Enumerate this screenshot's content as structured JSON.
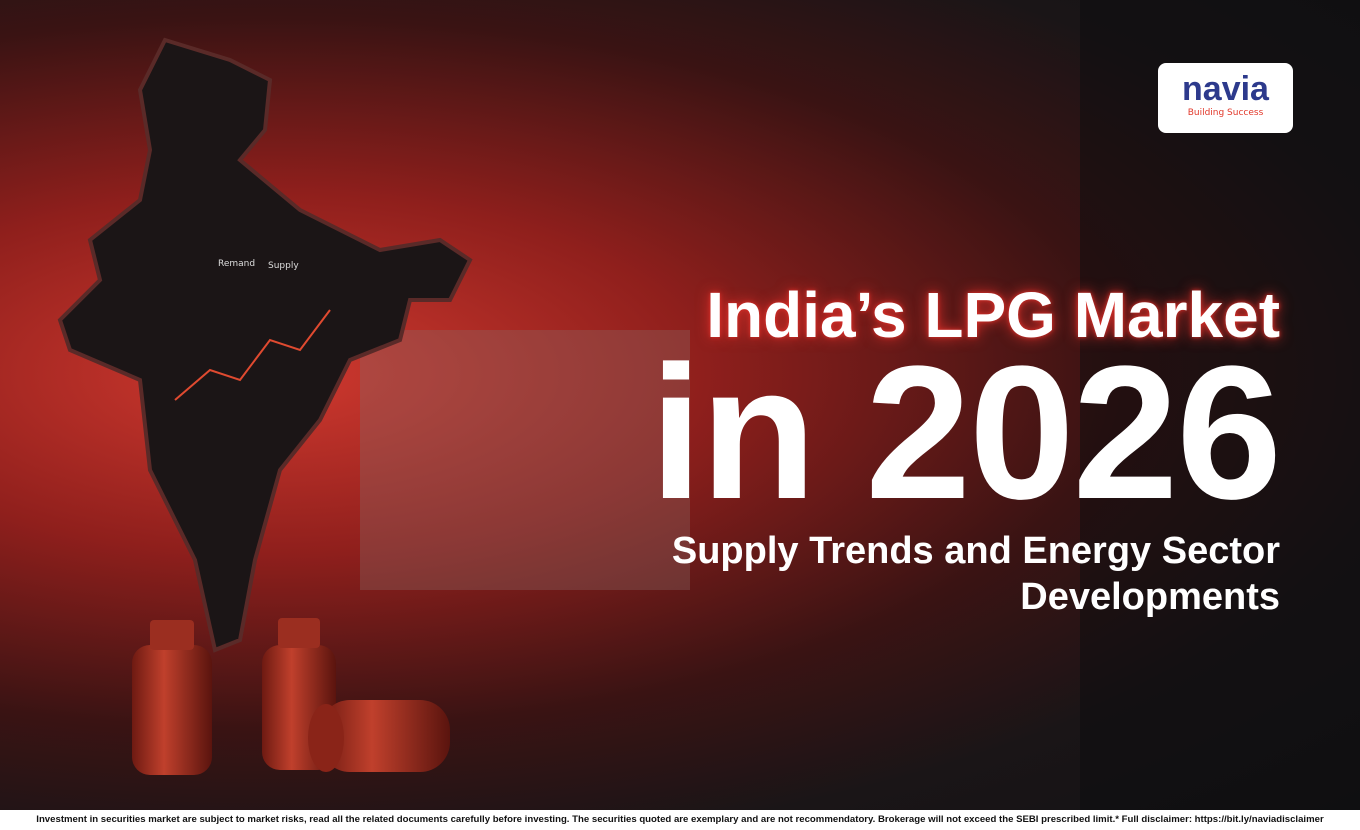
{
  "logo": {
    "name": "navia",
    "tagline": "Building Success"
  },
  "headline": {
    "line1": "India’s LPG Market",
    "line2": "in 2026",
    "subtitle1": "Supply Trends and Energy Sector",
    "subtitle2": "Developments"
  },
  "map": {
    "labels": [
      "Remand",
      "Supply"
    ]
  },
  "disclaimer": "Investment in securities market are subject to market risks, read all the related documents carefully before investing. The securities quoted are exemplary and are not recommendatory. Brokerage will not exceed the SEBI prescribed limit.* Full disclaimer: https://bit.ly/naviadisclaimer"
}
